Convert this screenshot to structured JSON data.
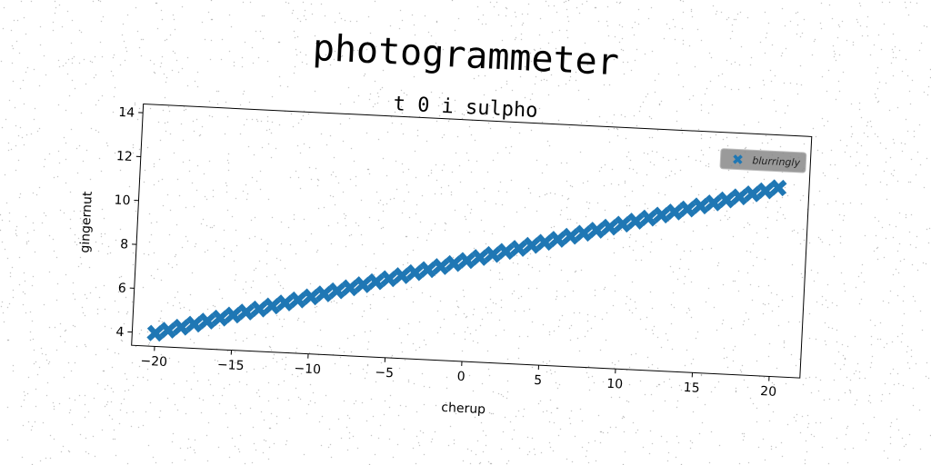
{
  "header": {
    "title": "photogrammeter",
    "subtitle": "t 0 i sulpho"
  },
  "chart_data": {
    "type": "scatter",
    "title": "photogrammeter",
    "subtitle": "t 0 i sulpho",
    "xlabel": "cherup",
    "ylabel": "gingernut",
    "xlim": [
      -21.5,
      22
    ],
    "ylim": [
      3.4,
      14.4
    ],
    "xticks": [
      -20,
      -15,
      -10,
      -5,
      0,
      5,
      10,
      15,
      20
    ],
    "yticks": [
      4,
      6,
      8,
      10,
      12,
      14
    ],
    "grid": false,
    "legend_position": "top-right",
    "marker": "X",
    "series_color": "#1f77b4",
    "series": [
      {
        "name": "blurringly",
        "slope": 0.2,
        "intercept": 8,
        "x_start": -20,
        "x_end": 20,
        "point_count": 49
      }
    ]
  }
}
